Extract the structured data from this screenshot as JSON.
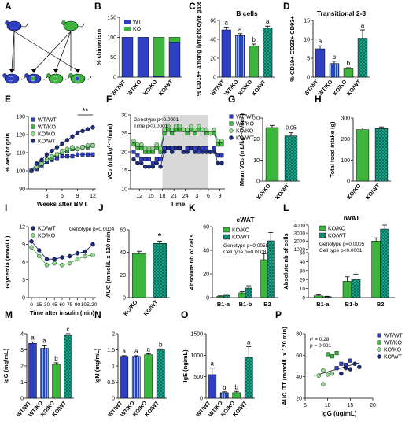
{
  "panel_letters": [
    "A",
    "B",
    "C",
    "D",
    "E",
    "F",
    "G",
    "H",
    "I",
    "J",
    "K",
    "L",
    "M",
    "N",
    "O",
    "P"
  ],
  "colors": {
    "blue": "#2E3FC4",
    "green": "#3BB53B",
    "teal": "#16A58A",
    "dark": "#1C2B7A",
    "light": "#8CD98C",
    "gray": "#D8D8D8"
  },
  "chart_data": [
    {
      "id": "A",
      "type": "diagram",
      "title": ""
    },
    {
      "id": "B",
      "type": "bar",
      "stacked": true,
      "ylabel": "% chimerism",
      "ylim": [
        0,
        150
      ],
      "yticks": [
        0,
        50,
        100,
        150
      ],
      "categories": [
        "WT/WT",
        "WT/KO",
        "KO/KO",
        "KO/WT"
      ],
      "series": [
        {
          "name": "WT",
          "values": [
            100,
            100,
            2,
            88
          ]
        },
        {
          "name": "KO",
          "values": [
            0,
            0,
            98,
            12
          ]
        }
      ]
    },
    {
      "id": "C",
      "type": "bar",
      "title": "B cells",
      "ylabel": "% CD19+ among lymphocyte gate",
      "ylim": [
        0,
        60
      ],
      "yticks": [
        0,
        20,
        40,
        60
      ],
      "categories": [
        "WT/WT",
        "WT/KO",
        "KO/KO",
        "KO/WT"
      ],
      "values": [
        50,
        44,
        33,
        52
      ],
      "errors": [
        3,
        2,
        2,
        2
      ],
      "letters": [
        "a",
        "a",
        "b",
        "a"
      ]
    },
    {
      "id": "D",
      "type": "bar",
      "title": "Transitional 2-3",
      "ylabel": "% CD19+ CD23+ CD93+",
      "ylim": [
        0,
        15
      ],
      "yticks": [
        0,
        5,
        10,
        15
      ],
      "categories": [
        "WT/WT",
        "WT/KO",
        "KO/KO",
        "KO/WT"
      ],
      "values": [
        7.5,
        3.6,
        2.2,
        10.3
      ],
      "errors": [
        0.8,
        0.6,
        0.3,
        2.2
      ],
      "letters": [
        "a",
        "b",
        "b",
        "a"
      ]
    },
    {
      "id": "E",
      "type": "line",
      "xlabel": "Weeks after BMT",
      "ylabel": "% weight gain",
      "xlim": [
        0,
        12
      ],
      "ylim": [
        90,
        130
      ],
      "xticks": [
        3,
        6,
        9,
        12
      ],
      "yticks": [
        90,
        100,
        110,
        120,
        130
      ],
      "annotation": "**",
      "x": [
        0,
        1,
        2,
        3,
        4,
        5,
        6,
        7,
        8,
        9,
        10,
        11,
        12
      ],
      "series": [
        {
          "name": "WT/WT",
          "values": [
            100,
            101,
            103,
            105,
            106,
            107,
            108,
            108,
            108,
            109,
            109,
            109,
            109
          ]
        },
        {
          "name": "WT/KO",
          "values": [
            100,
            102,
            104,
            106,
            107,
            109,
            110,
            111,
            112,
            112,
            113,
            113,
            114
          ]
        },
        {
          "name": "KO/KO",
          "values": [
            100,
            102,
            104,
            106,
            108,
            109,
            111,
            112,
            113,
            112,
            113,
            114,
            114
          ]
        },
        {
          "name": "KO/WT",
          "values": [
            100,
            104,
            106,
            109,
            111,
            113,
            115,
            117,
            119,
            121,
            122,
            123,
            124
          ]
        }
      ]
    },
    {
      "id": "F",
      "type": "line",
      "xlabel": "Time",
      "ylabel": "VO₂ (mL/kg⁰·⁷⁵/min)",
      "ylim": [
        10,
        30
      ],
      "yticks": [
        10,
        15,
        20,
        25,
        30
      ],
      "xticks": [
        "12",
        "15",
        "18",
        "21",
        "24",
        "3",
        "6",
        "9"
      ],
      "annotation_lines": [
        "Genotype p<0.0001",
        "Time p<0.0001"
      ],
      "dark_period": [
        "18",
        "6"
      ],
      "x": [
        10,
        11,
        12,
        13,
        14,
        15,
        16,
        17,
        18,
        19,
        20,
        21,
        22,
        23,
        24,
        25,
        26,
        27,
        28,
        29,
        30,
        31,
        32,
        33
      ],
      "series": [
        {
          "name": "WT/WT",
          "values": [
            20,
            19,
            18,
            18,
            18,
            17,
            18,
            18,
            21,
            21,
            21,
            21,
            21,
            20,
            21,
            21,
            21,
            20,
            21,
            21,
            20,
            21,
            19,
            19
          ]
        },
        {
          "name": "WT/KO",
          "values": [
            22,
            21,
            21,
            20,
            20,
            20,
            21,
            20,
            25,
            26,
            25,
            26,
            26,
            26,
            25,
            26,
            25,
            26,
            26,
            25,
            25,
            25,
            22,
            22
          ]
        },
        {
          "name": "KO/KO",
          "values": [
            23,
            22,
            22,
            21,
            21,
            21,
            22,
            21,
            26,
            27,
            26,
            27,
            27,
            26,
            26,
            27,
            26,
            27,
            26,
            26,
            25,
            26,
            23,
            23
          ]
        },
        {
          "name": "KO/WT",
          "values": [
            18,
            17,
            17,
            16,
            16,
            16,
            17,
            16,
            20,
            21,
            20,
            21,
            21,
            20,
            20,
            21,
            20,
            21,
            20,
            20,
            20,
            20,
            17,
            17
          ]
        }
      ]
    },
    {
      "id": "G",
      "type": "bar",
      "ylabel": "Mean VO₂ (mL/kg⁰·⁷⁵/min)",
      "ylim": [
        0,
        30
      ],
      "yticks": [
        0,
        10,
        20,
        30
      ],
      "categories": [
        "KO/KO",
        "KO/WT"
      ],
      "values": [
        25.5,
        21.5
      ],
      "errors": [
        1,
        1.5
      ],
      "annotation": "0.05"
    },
    {
      "id": "H",
      "type": "bar",
      "ylabel": "Total food intake (g)",
      "ylim": [
        0,
        300
      ],
      "yticks": [
        0,
        100,
        200,
        300
      ],
      "categories": [
        "KO/KO",
        "KO/WT"
      ],
      "values": [
        245,
        250
      ],
      "errors": [
        8,
        8
      ]
    },
    {
      "id": "I",
      "type": "line",
      "xlabel": "Time after insulin (min)",
      "ylabel": "Glycemia (mmol/L)",
      "ylim": [
        0,
        12
      ],
      "yticks": [
        0,
        3,
        6,
        9,
        12
      ],
      "xticks": [
        0,
        15,
        30,
        45,
        60,
        75,
        90,
        105,
        120
      ],
      "annotation": "Genotype p=0.0004",
      "x": [
        0,
        15,
        30,
        45,
        60,
        75,
        90,
        105,
        120
      ],
      "series": [
        {
          "name": "KO/WT",
          "values": [
            9.5,
            8,
            6.5,
            6.5,
            6.8,
            7,
            7.5,
            7.8,
            9
          ]
        },
        {
          "name": "KO/KO",
          "values": [
            8.5,
            7,
            5.5,
            5.8,
            5.5,
            5.8,
            6.5,
            7,
            7.2
          ]
        }
      ]
    },
    {
      "id": "J",
      "type": "bar",
      "ylabel": "AUC (mmol/L x 120 min)",
      "ylim": [
        0,
        60
      ],
      "yticks": [
        0,
        20,
        40,
        60
      ],
      "categories": [
        "KO/KO",
        "KO/WT"
      ],
      "values": [
        39,
        48
      ],
      "errors": [
        2,
        2
      ],
      "annotation": "*"
    },
    {
      "id": "K",
      "type": "bar",
      "title": "eWAT",
      "ylabel": "Absolute nb of cells",
      "ylim": [
        0,
        60
      ],
      "yticks": [
        0,
        20,
        40,
        60
      ],
      "categories": [
        "B1-a",
        "B1-b",
        "B2"
      ],
      "series": [
        {
          "name": "KO/KO",
          "values": [
            1,
            4,
            32
          ],
          "errors": [
            0.5,
            1,
            5
          ]
        },
        {
          "name": "KO/WT",
          "values": [
            2,
            8,
            48
          ],
          "errors": [
            1,
            2,
            7
          ]
        }
      ],
      "annotation_lines": [
        "Genotype p=0.0058",
        "Cell type p=0.0008"
      ]
    },
    {
      "id": "L",
      "type": "bar",
      "title": "iWAT",
      "ylabel": "Absolute nb of cells",
      "ylim": [
        0,
        4000
      ],
      "yticks": [
        0,
        10,
        20,
        30,
        40,
        50,
        1000,
        2000,
        3000,
        4000
      ],
      "categories": [
        "B1-a",
        "B1-b",
        "B2"
      ],
      "series": [
        {
          "name": "KO/KO",
          "values": [
            2,
            18,
            2000
          ],
          "errors": [
            1,
            5,
            400
          ]
        },
        {
          "name": "KO/WT",
          "values": [
            1,
            20,
            3500
          ],
          "errors": [
            0.5,
            6,
            500
          ]
        }
      ],
      "annotation_lines": [
        "Genotype p=0.0005",
        "Cell type p<0.0001"
      ]
    },
    {
      "id": "M",
      "type": "bar",
      "ylabel": "IgG (mg/mL)",
      "ylim": [
        0,
        4
      ],
      "yticks": [
        0,
        1,
        2,
        3,
        4
      ],
      "categories": [
        "WT/WT",
        "WT/KO",
        "KO/KO",
        "KO/WT"
      ],
      "values": [
        3.4,
        3.1,
        2.1,
        3.9
      ],
      "errors": [
        0.1,
        0.2,
        0.1,
        0.1
      ],
      "letters": [
        "a",
        "a",
        "b",
        "c"
      ]
    },
    {
      "id": "N",
      "type": "bar",
      "ylabel": "IgM (mg/mL)",
      "ylim": [
        0,
        2.0
      ],
      "yticks": [
        0.0,
        0.5,
        1.0,
        1.5,
        2.0
      ],
      "categories": [
        "WT/WT",
        "WT/KO",
        "KO/KO",
        "KO/WT"
      ],
      "values": [
        1.3,
        1.3,
        1.35,
        1.5
      ],
      "errors": [
        0.02,
        0.02,
        0.03,
        0.03
      ],
      "letters": [
        "a",
        "a",
        "a",
        "b"
      ]
    },
    {
      "id": "O",
      "type": "bar",
      "ylabel": "IgE (ng/mL)",
      "ylim": [
        0,
        1500
      ],
      "yticks": [
        0,
        500,
        1000,
        1500
      ],
      "categories": [
        "WT/WT",
        "WT/KO",
        "KO/KO",
        "KO/WT"
      ],
      "values": [
        550,
        130,
        130,
        950
      ],
      "errors": [
        150,
        20,
        30,
        250
      ],
      "letters": [
        "a",
        "b",
        "b",
        "a"
      ]
    },
    {
      "id": "P",
      "type": "scatter",
      "xlabel": "IgG (ug/mL)",
      "ylabel": "AUC ITT (mmol/L x 120 min)",
      "xlim": [
        5,
        20
      ],
      "ylim": [
        20,
        80
      ],
      "xticks": [
        5,
        10,
        15,
        20
      ],
      "yticks": [
        20,
        40,
        60,
        80
      ],
      "annotation_lines": [
        "r² = 0.28",
        "p = 0.021"
      ],
      "series": [
        {
          "name": "WT/WT",
          "points": [
            [
              12,
              48
            ],
            [
              13,
              52
            ],
            [
              14,
              51
            ],
            [
              15,
              55
            ]
          ]
        },
        {
          "name": "WT/KO",
          "points": [
            [
              10,
              61
            ],
            [
              11,
              59
            ],
            [
              12,
              62
            ]
          ]
        },
        {
          "name": "KO/KO",
          "points": [
            [
              8,
              41
            ],
            [
              9,
              33
            ],
            [
              9,
              46
            ],
            [
              10,
              42
            ],
            [
              11,
              43
            ]
          ]
        },
        {
          "name": "KO/WT",
          "points": [
            [
              13,
              43
            ],
            [
              14,
              48
            ],
            [
              15,
              47
            ],
            [
              16,
              52
            ],
            [
              17,
              49
            ]
          ]
        }
      ],
      "regression": [
        [
          7,
          41
        ],
        [
          17,
          53
        ]
      ]
    }
  ]
}
